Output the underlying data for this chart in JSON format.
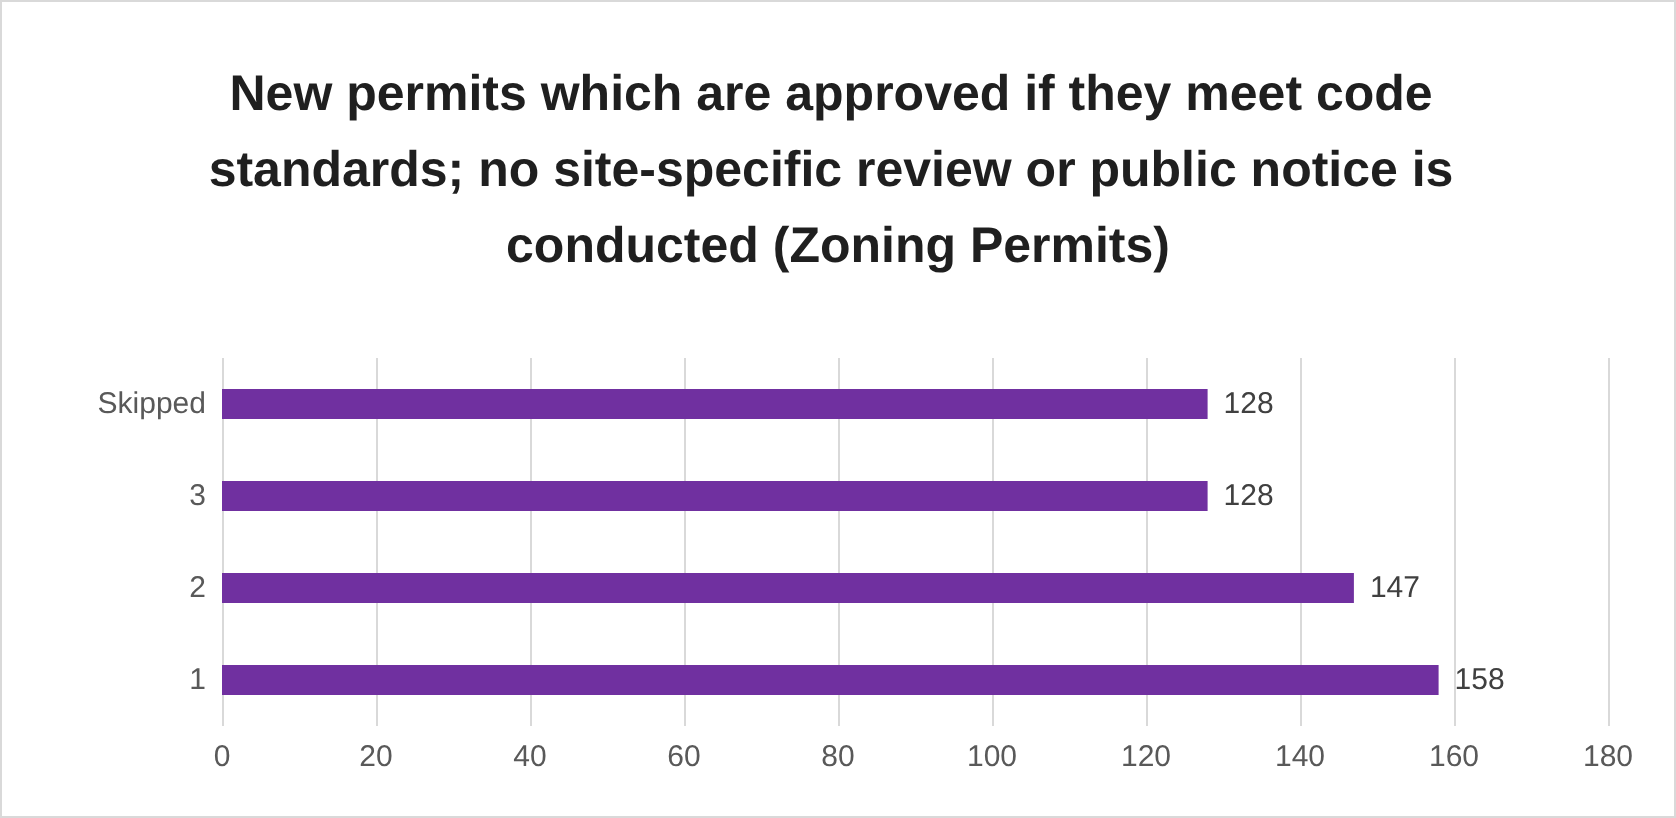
{
  "chart_data": {
    "type": "bar",
    "orientation": "horizontal",
    "title": "New permits which are approved if they meet code standards; no site-specific review or public notice is conducted (Zoning Permits)",
    "categories": [
      "Skipped",
      "3",
      "2",
      "1"
    ],
    "values": [
      128,
      128,
      147,
      158
    ],
    "color": "#7030a0",
    "xlim": [
      0,
      180
    ],
    "xticks": [
      0,
      20,
      40,
      60,
      80,
      100,
      120,
      140,
      160,
      180
    ],
    "grid": "x",
    "data_labels": true
  }
}
